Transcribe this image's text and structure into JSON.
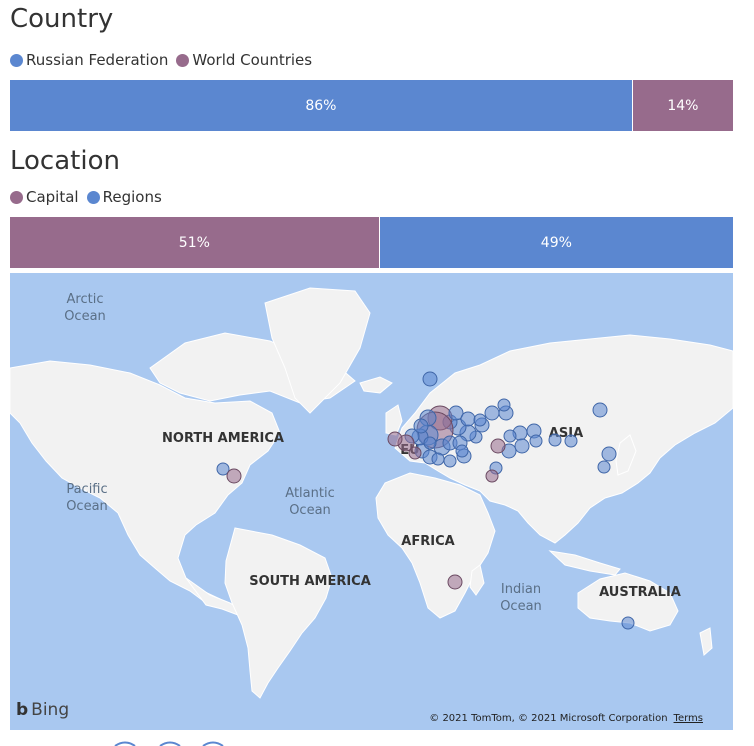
{
  "country": {
    "title": "Country",
    "legend": [
      {
        "label": "Russian Federation",
        "color": "#5b87d0"
      },
      {
        "label": "World Countries",
        "color": "#976b8c"
      }
    ],
    "bar": [
      {
        "label": "86%",
        "value": 0.86,
        "color": "#5b87d0"
      },
      {
        "label": "14%",
        "value": 0.14,
        "color": "#976b8c"
      }
    ]
  },
  "location": {
    "title": "Location",
    "legend": [
      {
        "label": "Capital",
        "color": "#976b8c"
      },
      {
        "label": "Regions",
        "color": "#5b87d0"
      }
    ],
    "bar": [
      {
        "label": "51%",
        "value": 0.51,
        "color": "#976b8c"
      },
      {
        "label": "49%",
        "value": 0.49,
        "color": "#5b87d0"
      }
    ]
  },
  "map": {
    "region_labels": [
      "NORTH AMERICA",
      "SOUTH AMERICA",
      "AFRICA",
      "ASIA",
      "AUSTRALIA",
      "EU"
    ],
    "ocean_labels": [
      "Arctic Ocean",
      "Pacific Ocean",
      "Atlantic Ocean",
      "Indian Ocean"
    ],
    "provider": "Bing",
    "attribution": "© 2021 TomTom, © 2021 Microsoft Corporation",
    "terms": "Terms",
    "colors": {
      "water": "#a9c8f0",
      "land": "#f2f2f2",
      "region": "#5b87d0",
      "capital": "#976b8c"
    }
  }
}
